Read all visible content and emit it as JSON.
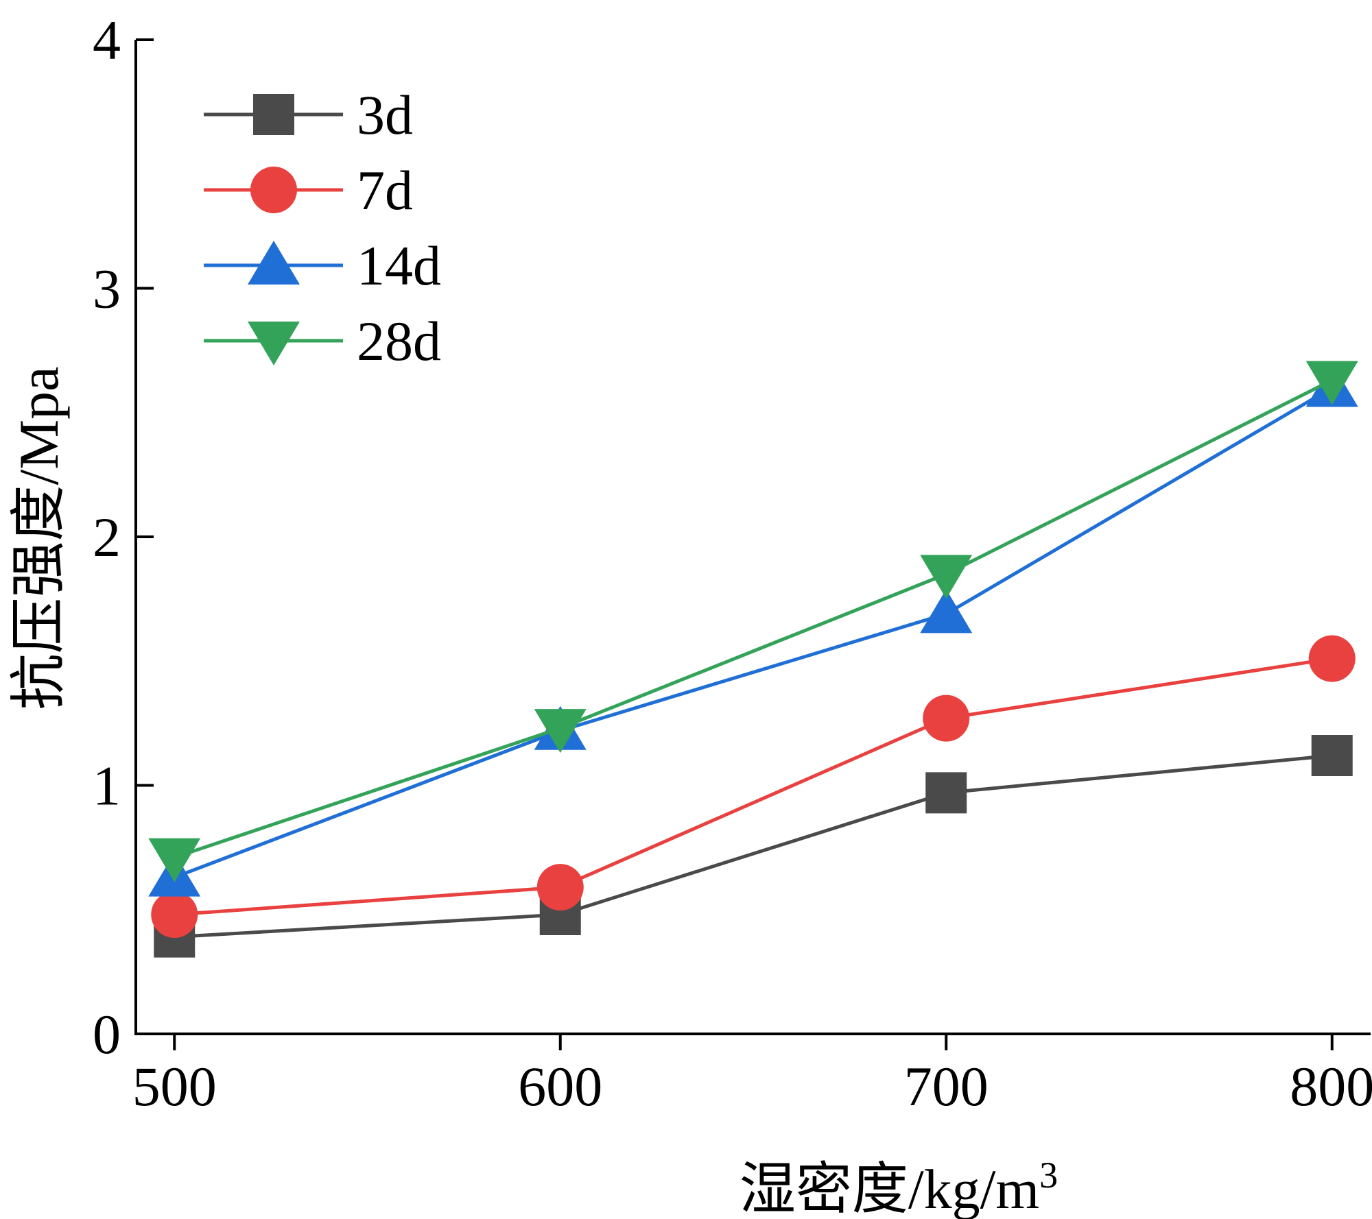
{
  "chart_data": {
    "type": "line",
    "title": "",
    "xlabel": "湿密度/kg/m",
    "xlabel_superscript": "3",
    "ylabel": "抗压强度/Mpa",
    "x": [
      500,
      600,
      700,
      800
    ],
    "x_ticks": [
      "500",
      "600",
      "700",
      "800"
    ],
    "y_ticks": [
      "0",
      "1",
      "2",
      "3",
      "4"
    ],
    "xlim": [
      490,
      810
    ],
    "ylim": [
      0,
      4
    ],
    "grid": false,
    "legend_position": "top-left",
    "series": [
      {
        "name": "3d",
        "marker": "square",
        "color": "#4a4a4a",
        "values": [
          0.39,
          0.48,
          0.97,
          1.12
        ]
      },
      {
        "name": "7d",
        "marker": "circle",
        "color": "#e8413f",
        "values": [
          0.48,
          0.59,
          1.27,
          1.51
        ]
      },
      {
        "name": "14d",
        "marker": "triangle-up",
        "color": "#1f6fd6",
        "values": [
          0.63,
          1.22,
          1.69,
          2.6
        ]
      },
      {
        "name": "28d",
        "marker": "triangle-down",
        "color": "#34a35a",
        "values": [
          0.71,
          1.23,
          1.85,
          2.63
        ]
      }
    ]
  }
}
